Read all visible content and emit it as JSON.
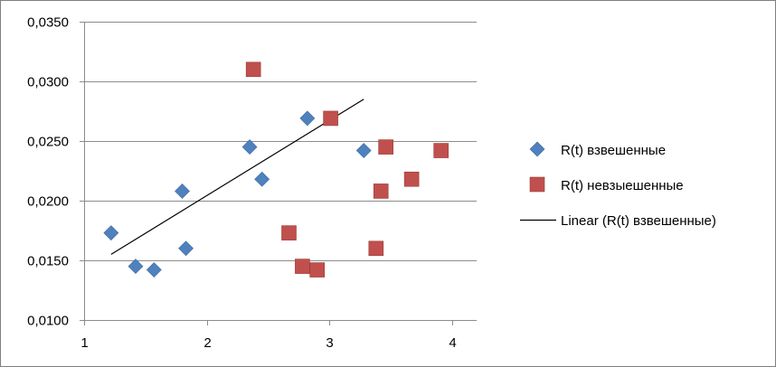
{
  "chart_data": {
    "type": "scatter",
    "title": "",
    "xlabel": "",
    "ylabel": "",
    "xlim": [
      1,
      4.2
    ],
    "ylim": [
      0.01,
      0.035
    ],
    "x_ticks": [
      {
        "value": 1,
        "label": "1"
      },
      {
        "value": 2,
        "label": "2"
      },
      {
        "value": 3,
        "label": "3"
      },
      {
        "value": 4,
        "label": "4"
      }
    ],
    "y_ticks": [
      {
        "value": 0.01,
        "label": "0,0100"
      },
      {
        "value": 0.015,
        "label": "0,0150"
      },
      {
        "value": 0.02,
        "label": "0,0200"
      },
      {
        "value": 0.025,
        "label": "0,0250"
      },
      {
        "value": 0.03,
        "label": "0,0300"
      },
      {
        "value": 0.035,
        "label": "0,0350"
      }
    ],
    "grid": "horizontal",
    "legend_position": "right",
    "series": [
      {
        "name": "R(t) взвешенные",
        "marker": "diamond",
        "color": "#4f81bd",
        "points": [
          {
            "x": 1.22,
            "y": 0.0173
          },
          {
            "x": 1.42,
            "y": 0.0145
          },
          {
            "x": 1.57,
            "y": 0.0142
          },
          {
            "x": 1.8,
            "y": 0.0208
          },
          {
            "x": 1.83,
            "y": 0.016
          },
          {
            "x": 2.35,
            "y": 0.0245
          },
          {
            "x": 2.45,
            "y": 0.0218
          },
          {
            "x": 2.82,
            "y": 0.0269
          },
          {
            "x": 3.28,
            "y": 0.0242
          }
        ]
      },
      {
        "name": "R(t) невзыешенные",
        "marker": "square",
        "color": "#c0504d",
        "points": [
          {
            "x": 2.38,
            "y": 0.031
          },
          {
            "x": 2.67,
            "y": 0.0173
          },
          {
            "x": 2.78,
            "y": 0.0145
          },
          {
            "x": 2.9,
            "y": 0.0142
          },
          {
            "x": 3.01,
            "y": 0.0269
          },
          {
            "x": 3.38,
            "y": 0.016
          },
          {
            "x": 3.42,
            "y": 0.0208
          },
          {
            "x": 3.46,
            "y": 0.0245
          },
          {
            "x": 3.67,
            "y": 0.0218
          },
          {
            "x": 3.91,
            "y": 0.0242
          }
        ]
      }
    ],
    "trendline": {
      "name": "Linear (R(t) взвешенные)",
      "color": "#000000",
      "from": {
        "x": 1.22,
        "y": 0.0155
      },
      "to": {
        "x": 3.28,
        "y": 0.0285
      }
    }
  }
}
